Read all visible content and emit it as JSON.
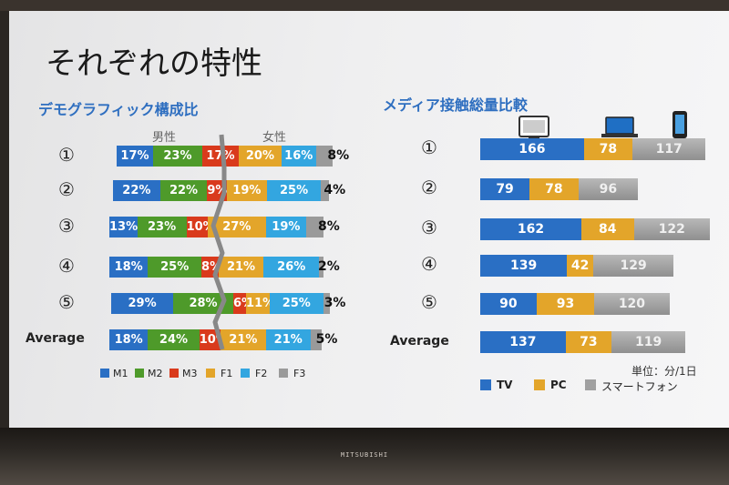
{
  "slide": {
    "title": "それぞれの特性",
    "brand": "MITSUBISHI"
  },
  "colors": {
    "M1": "#2a6fc4",
    "M2": "#4e9a2a",
    "M3": "#d93a1c",
    "F1": "#e3a52a",
    "F2": "#33a6e0",
    "F3": "#9a9a9a",
    "TV": "#2a6fc4",
    "PC": "#e3a52a",
    "Smartphone": "#a0a0a0"
  },
  "chart_data": [
    {
      "type": "bar",
      "stacked": true,
      "title": "デモグラフィック構成比",
      "group_labels": [
        "男性",
        "女性"
      ],
      "categories": [
        "①",
        "②",
        "③",
        "④",
        "⑤",
        "Average"
      ],
      "series": [
        {
          "name": "M1",
          "values": [
            17,
            22,
            13,
            18,
            29,
            18
          ]
        },
        {
          "name": "M2",
          "values": [
            23,
            22,
            23,
            25,
            28,
            24
          ]
        },
        {
          "name": "M3",
          "values": [
            17,
            9,
            10,
            8,
            6,
            10
          ]
        },
        {
          "name": "F1",
          "values": [
            20,
            19,
            27,
            21,
            11,
            21
          ]
        },
        {
          "name": "F2",
          "values": [
            16,
            25,
            19,
            26,
            25,
            21
          ]
        },
        {
          "name": "F3",
          "values": [
            8,
            4,
            8,
            2,
            3,
            5
          ]
        }
      ],
      "value_labels": [
        [
          "17%",
          "23%",
          "17%",
          "20%",
          "16%",
          "8%"
        ],
        [
          "22%",
          "22%",
          "9%",
          "19%",
          "25%",
          "4%"
        ],
        [
          "13%",
          "23%",
          "10%",
          "27%",
          "19%",
          "8%"
        ],
        [
          "18%",
          "25%",
          "8%",
          "21%",
          "26%",
          "2%"
        ],
        [
          "29%",
          "28%",
          "6%",
          "11%",
          "25%",
          "3%"
        ],
        [
          "18%",
          "24%",
          "10%",
          "21%",
          "21%",
          "5%"
        ]
      ]
    },
    {
      "type": "bar",
      "stacked": true,
      "title": "メディア接触総量比較",
      "unit": "単位：分/1日",
      "device_icons": [
        "tv-icon",
        "laptop-icon",
        "smartphone-icon"
      ],
      "categories": [
        "①",
        "②",
        "③",
        "④",
        "⑤",
        "Average"
      ],
      "series": [
        {
          "name": "TV",
          "values": [
            166,
            79,
            162,
            139,
            90,
            137
          ]
        },
        {
          "name": "PC",
          "values": [
            78,
            78,
            84,
            42,
            93,
            73
          ]
        },
        {
          "name": "スマートフォン",
          "values": [
            117,
            96,
            122,
            129,
            120,
            119
          ]
        }
      ]
    }
  ]
}
